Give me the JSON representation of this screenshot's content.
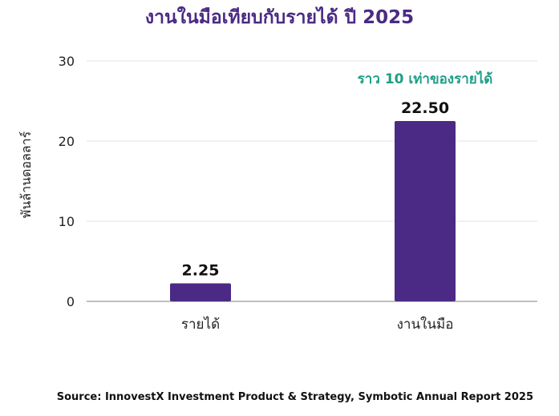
{
  "chart_data": {
    "type": "bar",
    "title": "งานในมือเทียบกับรายได้ ปี 2025",
    "ylabel": "พันล้านดอลลาร์",
    "xlabel": "",
    "ylim": [
      0,
      30
    ],
    "yticks": [
      0,
      10,
      20,
      30
    ],
    "grid": true,
    "categories": [
      "รายได้",
      "งานในมือ"
    ],
    "values": [
      2.25,
      22.5
    ],
    "data_labels": [
      "2.25",
      "22.50"
    ],
    "bar_color": "#4b2a85",
    "annotation": {
      "text": "ราว 10 เท่าของรายได้",
      "category": "งานในมือ",
      "color": "#1f9e86"
    },
    "source": "Source: InnovestX Investment Product & Strategy, Symbotic Annual Report 2025"
  }
}
